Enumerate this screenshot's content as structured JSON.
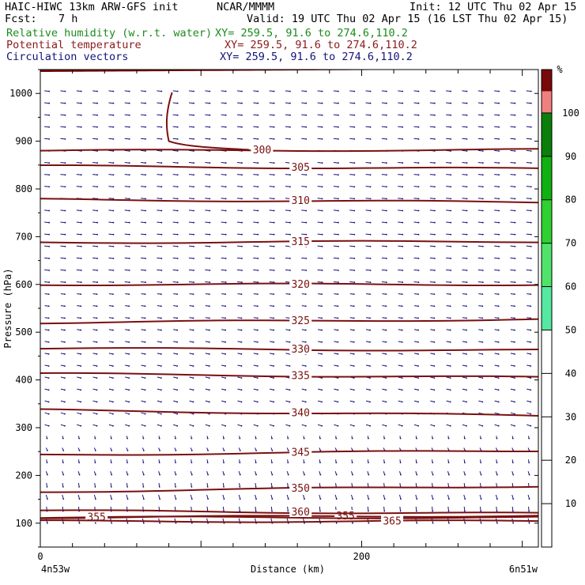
{
  "header": {
    "model": "HAIC-HIWC 13km ARW-GFS init",
    "org": "NCAR/MMMM",
    "init": "Init: 12 UTC Thu 02 Apr 15",
    "fcst_label": "Fcst:",
    "fcst_value": "7 h",
    "valid": "Valid: 19 UTC Thu 02 Apr 15 (16 LST Thu 02 Apr 15)",
    "fields": [
      {
        "name": "Relative humidity (w.r.t. water)",
        "xy": "XY= 259.5, 91.6 to 274.6,110.2",
        "color": "#1d8a1d"
      },
      {
        "name": "Potential temperature",
        "xy": "XY= 259.5, 91.6 to 274.6,110.2",
        "color": "#8b1a1a"
      },
      {
        "name": "Circulation vectors",
        "xy": "XY= 259.5, 91.6 to 274.6,110.2",
        "color": "#14147a"
      }
    ]
  },
  "chart_data": {
    "type": "heatmap",
    "xlabel": "Distance (km)",
    "ylabel": "Pressure (hPa)",
    "x_range": [
      0,
      310
    ],
    "x_ticks": [
      0,
      200
    ],
    "x_end_labels": {
      "left": "4n53w",
      "right": "6n51w"
    },
    "y_range": [
      1050,
      50
    ],
    "y_ticks": [
      100,
      200,
      300,
      400,
      500,
      600,
      700,
      800,
      900,
      1000
    ],
    "colorbar": {
      "unit": "%",
      "levels": [
        10,
        20,
        30,
        40,
        50,
        60,
        70,
        80,
        90,
        100
      ],
      "bands": [
        {
          "from": 50,
          "to": 60,
          "color": "#55e8a0"
        },
        {
          "from": 60,
          "to": 70,
          "color": "#4fe36a"
        },
        {
          "from": 70,
          "to": 80,
          "color": "#2ed12e"
        },
        {
          "from": 80,
          "to": 90,
          "color": "#10b010"
        },
        {
          "from": 90,
          "to": 100,
          "color": "#0a800a"
        },
        {
          "from": 100,
          "to": 105,
          "color": "#f08080"
        },
        {
          "from": 105,
          "to": 110,
          "color": "#7a0808"
        }
      ]
    },
    "theta_contours": [
      {
        "label": "300",
        "p0": 880,
        "p1": 882,
        "label_x": 138
      },
      {
        "label": "305",
        "p0": 848,
        "p1": 842,
        "label_x": 162
      },
      {
        "label": "310",
        "p0": 778,
        "p1": 772,
        "label_x": 162
      },
      {
        "label": "315",
        "p0": 688,
        "p1": 690,
        "label_x": 162
      },
      {
        "label": "320",
        "p0": 600,
        "p1": 600,
        "label_x": 162
      },
      {
        "label": "325",
        "p0": 520,
        "p1": 527,
        "label_x": 162
      },
      {
        "label": "330",
        "p0": 466,
        "p1": 462,
        "label_x": 162
      },
      {
        "label": "335",
        "p0": 413,
        "p1": 405,
        "label_x": 162
      },
      {
        "label": "340",
        "p0": 337,
        "p1": 325,
        "label_x": 162
      },
      {
        "label": "345",
        "p0": 243,
        "p1": 252,
        "label_x": 162
      },
      {
        "label": "350",
        "p0": 166,
        "p1": 178,
        "label_x": 162
      },
      {
        "label": "355",
        "p0": 112,
        "p1": 116,
        "label_x": 190
      },
      {
        "label": "355",
        "p0": 112,
        "p1": 112,
        "label_x": 35
      },
      {
        "label": "360",
        "p0": 126,
        "p1": 120,
        "label_x": 162
      },
      {
        "label": "365",
        "p0": 104,
        "p1": 104,
        "label_x": 219
      }
    ]
  }
}
